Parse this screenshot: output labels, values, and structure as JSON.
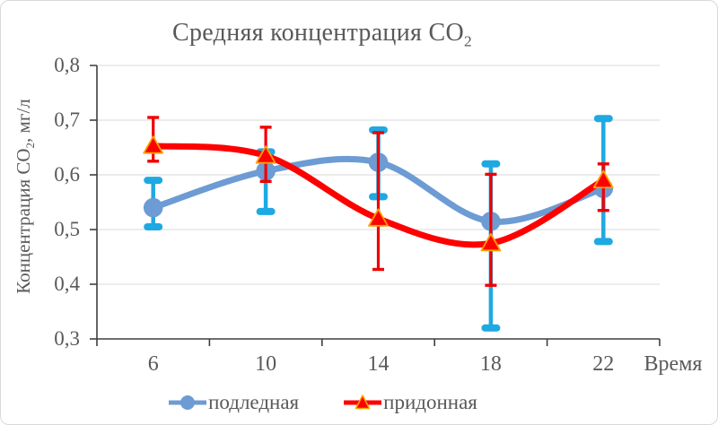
{
  "chart_data": {
    "type": "line",
    "title": {
      "pre": "Средняя концентрация CO",
      "sub": "2"
    },
    "ylabel": {
      "pre": "Концентрация CO",
      "sub": "2",
      "post": ", мг/л"
    },
    "xlabel": "Время",
    "categories": [
      "6",
      "10",
      "14",
      "18",
      "22"
    ],
    "ylim": [
      0.3,
      0.8
    ],
    "ytick_step": 0.1,
    "ytick_labels": [
      "0,8",
      "0,7",
      "0,6",
      "0,5",
      "0,4",
      "0,3"
    ],
    "grid": true,
    "smoothed_lines": true,
    "legend_position": "bottom",
    "colors": {
      "grid": "#d9d9d9",
      "axis": "#3f3f3f",
      "text": "#595959"
    },
    "series": [
      {
        "name": "подледная",
        "marker": "circle",
        "color": "#6d9bd3",
        "error_color": "#1fa9e2",
        "values": [
          0.54,
          0.607,
          0.623,
          0.515,
          0.575
        ],
        "error_low": [
          0.505,
          0.533,
          0.56,
          0.32,
          0.478
        ],
        "error_high": [
          0.59,
          0.642,
          0.682,
          0.62,
          0.703
        ]
      },
      {
        "name": "придонная",
        "marker": "triangle",
        "color": "#fe0000",
        "marker_outline": "#ffa200",
        "error_color": "#f00000",
        "values": [
          0.653,
          0.635,
          0.52,
          0.475,
          0.59
        ],
        "error_low": [
          0.625,
          0.588,
          0.427,
          0.398,
          0.535
        ],
        "error_high": [
          0.705,
          0.687,
          0.677,
          0.601,
          0.62
        ]
      }
    ]
  }
}
